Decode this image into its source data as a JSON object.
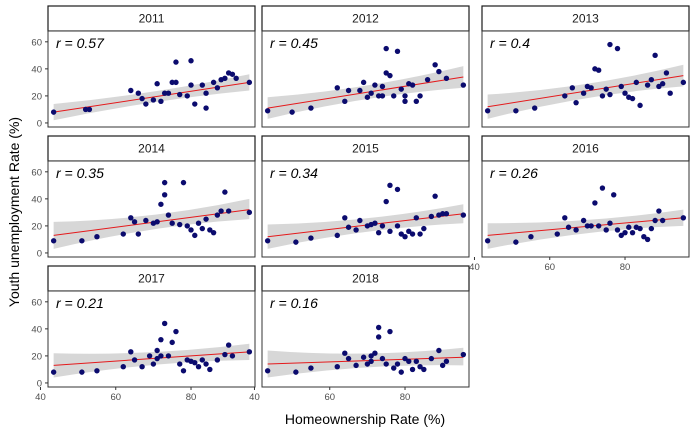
{
  "chart_data": {
    "type": "scatter",
    "xlabel": "Homeownership Rate (%)",
    "ylabel": "Youth unemployment Rate (%)",
    "xlim": [
      42,
      97
    ],
    "ylim": [
      -3,
      68
    ],
    "x_ticks": [
      40,
      60,
      80
    ],
    "y_ticks": [
      0,
      20,
      40,
      60
    ],
    "grid": false,
    "colors": {
      "points": "#0b0b6e",
      "fit_line": "#e41a1c",
      "ci_band": "#d3d3d3"
    },
    "panels": [
      {
        "title": "2011",
        "r_label": "r =",
        "r_value": "0.57",
        "fit": {
          "x": [
            43.5,
            95.5
          ],
          "y": [
            8,
            30
          ],
          "ci_low_start": 2,
          "ci_high_start": 14,
          "ci_low_end": 24,
          "ci_high_end": 36
        },
        "points": [
          [
            43.5,
            8
          ],
          [
            52,
            10
          ],
          [
            53,
            10
          ],
          [
            64,
            24
          ],
          [
            66,
            22
          ],
          [
            67,
            18
          ],
          [
            68,
            14
          ],
          [
            70,
            17
          ],
          [
            71,
            29
          ],
          [
            72,
            16
          ],
          [
            73,
            22
          ],
          [
            74,
            22
          ],
          [
            75,
            30
          ],
          [
            76,
            30
          ],
          [
            76,
            45
          ],
          [
            77,
            21
          ],
          [
            79,
            20
          ],
          [
            80,
            46
          ],
          [
            80,
            28
          ],
          [
            81,
            14
          ],
          [
            83,
            28
          ],
          [
            84,
            22
          ],
          [
            84,
            11
          ],
          [
            86,
            30
          ],
          [
            87,
            26
          ],
          [
            88,
            32
          ],
          [
            89,
            33
          ],
          [
            90,
            37
          ],
          [
            91,
            36
          ],
          [
            92,
            33
          ],
          [
            95.5,
            30
          ]
        ]
      },
      {
        "title": "2012",
        "r_label": "r =",
        "r_value": "0.45",
        "fit": {
          "x": [
            43.5,
            95.5
          ],
          "y": [
            11,
            34
          ],
          "ci_low_start": 3,
          "ci_high_start": 19,
          "ci_low_end": 26,
          "ci_high_end": 42
        },
        "points": [
          [
            43.5,
            9
          ],
          [
            50,
            8
          ],
          [
            55,
            11
          ],
          [
            62,
            26
          ],
          [
            64,
            16
          ],
          [
            65,
            24
          ],
          [
            68,
            24
          ],
          [
            69,
            30
          ],
          [
            70,
            19
          ],
          [
            71,
            22
          ],
          [
            72,
            28
          ],
          [
            73,
            20
          ],
          [
            74,
            27
          ],
          [
            74,
            20
          ],
          [
            75,
            37
          ],
          [
            75,
            55
          ],
          [
            76,
            35
          ],
          [
            77,
            20
          ],
          [
            78,
            53
          ],
          [
            79,
            25
          ],
          [
            80,
            20
          ],
          [
            80,
            16
          ],
          [
            81,
            29
          ],
          [
            82,
            28
          ],
          [
            83,
            16
          ],
          [
            84,
            20
          ],
          [
            86,
            32
          ],
          [
            88,
            43
          ],
          [
            89,
            38
          ],
          [
            91,
            33
          ],
          [
            95.5,
            28
          ]
        ]
      },
      {
        "title": "2013",
        "r_label": "r =",
        "r_value": "0.4",
        "fit": {
          "x": [
            43.5,
            95.5
          ],
          "y": [
            12,
            35
          ],
          "ci_low_start": 3,
          "ci_high_start": 21,
          "ci_low_end": 27,
          "ci_high_end": 43
        },
        "points": [
          [
            43.5,
            9
          ],
          [
            51,
            9
          ],
          [
            56,
            11
          ],
          [
            64,
            20
          ],
          [
            66,
            26
          ],
          [
            67,
            15
          ],
          [
            69,
            22
          ],
          [
            70,
            27
          ],
          [
            71,
            26
          ],
          [
            72,
            40
          ],
          [
            73,
            39
          ],
          [
            74,
            20
          ],
          [
            75,
            25
          ],
          [
            76,
            21
          ],
          [
            76,
            58
          ],
          [
            78,
            55
          ],
          [
            79,
            27
          ],
          [
            80,
            22
          ],
          [
            81,
            19
          ],
          [
            82,
            18
          ],
          [
            83,
            30
          ],
          [
            84,
            13
          ],
          [
            86,
            28
          ],
          [
            87,
            32
          ],
          [
            88,
            50
          ],
          [
            89,
            27
          ],
          [
            90,
            29
          ],
          [
            91,
            37
          ],
          [
            92,
            22
          ],
          [
            95.5,
            30
          ]
        ]
      },
      {
        "title": "2014",
        "r_label": "r =",
        "r_value": "0.35",
        "fit": {
          "x": [
            43.5,
            95.5
          ],
          "y": [
            13,
            32
          ],
          "ci_low_start": 3,
          "ci_high_start": 23,
          "ci_low_end": 25,
          "ci_high_end": 40
        },
        "points": [
          [
            43.5,
            9
          ],
          [
            51,
            9
          ],
          [
            55,
            12
          ],
          [
            62,
            14
          ],
          [
            64,
            26
          ],
          [
            65,
            23
          ],
          [
            66,
            14
          ],
          [
            68,
            24
          ],
          [
            70,
            22
          ],
          [
            71,
            23
          ],
          [
            72,
            36
          ],
          [
            73,
            43
          ],
          [
            73,
            52
          ],
          [
            74,
            28
          ],
          [
            75,
            22
          ],
          [
            77,
            21
          ],
          [
            78,
            52
          ],
          [
            79,
            20
          ],
          [
            80,
            17
          ],
          [
            81,
            13
          ],
          [
            82,
            22
          ],
          [
            83,
            18
          ],
          [
            84,
            25
          ],
          [
            85,
            17
          ],
          [
            86,
            15
          ],
          [
            87,
            28
          ],
          [
            88,
            31
          ],
          [
            89,
            45
          ],
          [
            90,
            31
          ],
          [
            95.5,
            30
          ]
        ]
      },
      {
        "title": "2015",
        "r_label": "r =",
        "r_value": "0.34",
        "fit": {
          "x": [
            43.5,
            95.5
          ],
          "y": [
            12,
            29
          ],
          "ci_low_start": 3,
          "ci_high_start": 21,
          "ci_low_end": 22,
          "ci_high_end": 36
        },
        "points": [
          [
            43.5,
            9
          ],
          [
            51,
            8
          ],
          [
            55,
            11
          ],
          [
            62,
            13
          ],
          [
            64,
            26
          ],
          [
            65,
            19
          ],
          [
            67,
            17
          ],
          [
            68,
            24
          ],
          [
            70,
            20
          ],
          [
            71,
            21
          ],
          [
            72,
            22
          ],
          [
            73,
            15
          ],
          [
            74,
            20
          ],
          [
            75,
            38
          ],
          [
            76,
            50
          ],
          [
            76,
            16
          ],
          [
            78,
            20
          ],
          [
            78,
            47
          ],
          [
            79,
            14
          ],
          [
            80,
            12
          ],
          [
            81,
            16
          ],
          [
            82,
            14
          ],
          [
            83,
            26
          ],
          [
            84,
            14
          ],
          [
            85,
            18
          ],
          [
            87,
            27
          ],
          [
            88,
            42
          ],
          [
            89,
            28
          ],
          [
            90,
            29
          ],
          [
            91,
            29
          ],
          [
            95.5,
            28
          ]
        ]
      },
      {
        "title": "2016",
        "r_label": "r =",
        "r_value": "0.26",
        "fit": {
          "x": [
            43.5,
            95.5
          ],
          "y": [
            13,
            26
          ],
          "ci_low_start": 3,
          "ci_high_start": 22,
          "ci_low_end": 20,
          "ci_high_end": 32
        },
        "points": [
          [
            43.5,
            9
          ],
          [
            51,
            8
          ],
          [
            55,
            12
          ],
          [
            62,
            14
          ],
          [
            64,
            26
          ],
          [
            65,
            19
          ],
          [
            67,
            17
          ],
          [
            69,
            24
          ],
          [
            70,
            20
          ],
          [
            71,
            20
          ],
          [
            72,
            37
          ],
          [
            73,
            20
          ],
          [
            74,
            48
          ],
          [
            75,
            17
          ],
          [
            76,
            22
          ],
          [
            77,
            43
          ],
          [
            78,
            17
          ],
          [
            79,
            13
          ],
          [
            80,
            15
          ],
          [
            81,
            19
          ],
          [
            82,
            15
          ],
          [
            83,
            19
          ],
          [
            84,
            18
          ],
          [
            85,
            12
          ],
          [
            86,
            10
          ],
          [
            87,
            18
          ],
          [
            88,
            24
          ],
          [
            89,
            31
          ],
          [
            90,
            24
          ],
          [
            95.5,
            26
          ]
        ]
      },
      {
        "title": "2017",
        "r_label": "r =",
        "r_value": "0.21",
        "fit": {
          "x": [
            43.5,
            95.5
          ],
          "y": [
            13,
            23
          ],
          "ci_low_start": 4,
          "ci_high_start": 22,
          "ci_low_end": 17,
          "ci_high_end": 29
        },
        "points": [
          [
            43.5,
            8
          ],
          [
            51,
            8
          ],
          [
            55,
            9
          ],
          [
            62,
            12
          ],
          [
            64,
            23
          ],
          [
            65,
            17
          ],
          [
            67,
            12
          ],
          [
            69,
            20
          ],
          [
            70,
            14
          ],
          [
            71,
            18
          ],
          [
            71,
            24
          ],
          [
            72,
            20
          ],
          [
            72,
            32
          ],
          [
            73,
            44
          ],
          [
            74,
            20
          ],
          [
            75,
            30
          ],
          [
            76,
            38
          ],
          [
            77,
            14
          ],
          [
            78,
            9
          ],
          [
            79,
            17
          ],
          [
            80,
            16
          ],
          [
            81,
            15
          ],
          [
            82,
            12
          ],
          [
            83,
            17
          ],
          [
            84,
            14
          ],
          [
            85,
            10
          ],
          [
            87,
            17
          ],
          [
            89,
            21
          ],
          [
            90,
            28
          ],
          [
            91,
            20
          ],
          [
            95.5,
            23
          ]
        ]
      },
      {
        "title": "2018",
        "r_label": "r =",
        "r_value": "0.16",
        "fit": {
          "x": [
            43.5,
            95.5
          ],
          "y": [
            14,
            19
          ],
          "ci_low_start": 4,
          "ci_high_start": 24,
          "ci_low_end": 13,
          "ci_high_end": 26
        },
        "points": [
          [
            43.5,
            9
          ],
          [
            51,
            8
          ],
          [
            55,
            11
          ],
          [
            62,
            12
          ],
          [
            64,
            22
          ],
          [
            65,
            18
          ],
          [
            67,
            13
          ],
          [
            69,
            19
          ],
          [
            70,
            14
          ],
          [
            71,
            16
          ],
          [
            71,
            20
          ],
          [
            72,
            22
          ],
          [
            73,
            34
          ],
          [
            73,
            41
          ],
          [
            74,
            18
          ],
          [
            75,
            14
          ],
          [
            76,
            38
          ],
          [
            77,
            11
          ],
          [
            78,
            14
          ],
          [
            79,
            8
          ],
          [
            80,
            18
          ],
          [
            81,
            16
          ],
          [
            82,
            10
          ],
          [
            83,
            16
          ],
          [
            84,
            12
          ],
          [
            85,
            10
          ],
          [
            87,
            18
          ],
          [
            89,
            24
          ],
          [
            90,
            13
          ],
          [
            91,
            16
          ],
          [
            95.5,
            21
          ]
        ]
      }
    ]
  }
}
